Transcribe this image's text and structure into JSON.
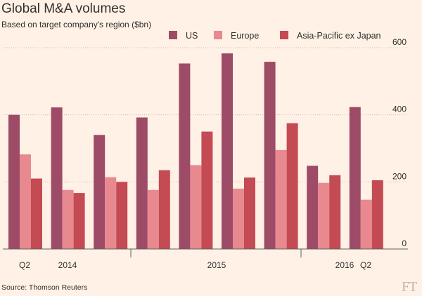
{
  "chart_data": {
    "type": "bar",
    "title": "Global M&A volumes",
    "subtitle": "Based on target company's region ($bn)",
    "source": "Source: Thomson Reuters",
    "logo": "FT",
    "ylim": [
      0,
      600
    ],
    "yticks": [
      0,
      200,
      400,
      600
    ],
    "grid": true,
    "legend_position": "top",
    "series": [
      {
        "name": "US",
        "color": "#9d4b67",
        "values": [
          400,
          422,
          340,
          392,
          553,
          583,
          558,
          248,
          423
        ]
      },
      {
        "name": "Europe",
        "color": "#e8898f",
        "values": [
          282,
          176,
          214,
          176,
          250,
          180,
          295,
          197,
          147
        ]
      },
      {
        "name": "Asia-Pacific ex Japan",
        "color": "#c44a53",
        "values": [
          210,
          167,
          200,
          235,
          350,
          213,
          375,
          220,
          205
        ]
      }
    ],
    "x_labels": [
      {
        "text": "Q2",
        "after_group": 0
      },
      {
        "text": "2014",
        "after_group": 1
      },
      {
        "text": "2015",
        "after_group": 4.5
      },
      {
        "text": "2016",
        "after_group": 7.6
      },
      {
        "text": "Q2",
        "after_group": 8.3
      }
    ]
  }
}
